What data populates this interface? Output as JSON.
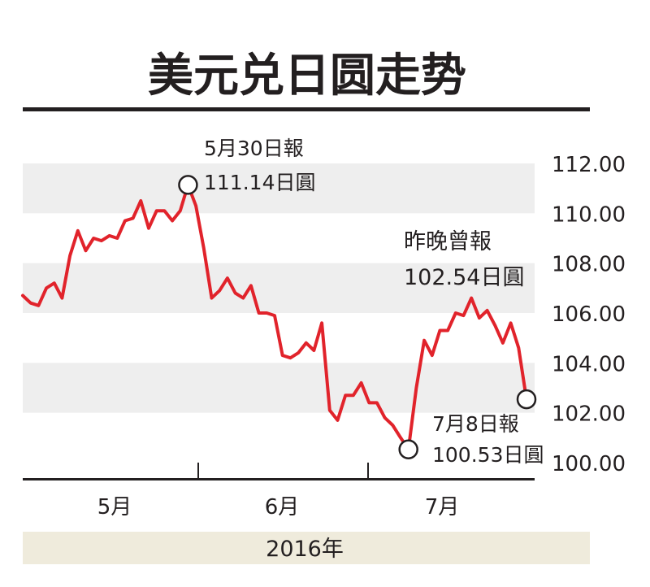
{
  "chart_data": {
    "type": "line",
    "title": "美元兑日圆走势",
    "xlabel": "2016年",
    "ylim": [
      100,
      112
    ],
    "y_ticks": [
      "112.00",
      "110.00",
      "108.00",
      "106.00",
      "104.00",
      "102.00",
      "100.00"
    ],
    "x_ticks": [
      "5月",
      "6月",
      "7月"
    ],
    "grid": "alternating horizontal bands",
    "colors": {
      "line": "#e1232b",
      "band": "#eeeeee",
      "footer": "#efebdc"
    },
    "series": [
      {
        "values": [
          106.7,
          106.4,
          106.3,
          107.0,
          107.2,
          106.6,
          108.3,
          109.3,
          108.5,
          109.0,
          108.9,
          109.1,
          109.0,
          109.7,
          109.8,
          110.5,
          109.4,
          110.1,
          110.1,
          109.7,
          110.1,
          111.14,
          110.3,
          108.6,
          106.6,
          106.9,
          107.4,
          106.8,
          106.6,
          107.1,
          106.0,
          106.0,
          105.9,
          104.3,
          104.2,
          104.4,
          104.8,
          104.5,
          105.6,
          102.1,
          101.7,
          102.7,
          102.7,
          103.2,
          102.4,
          102.4,
          101.8,
          101.5,
          101.0,
          100.53,
          103.0,
          104.9,
          104.3,
          105.3,
          105.3,
          106.0,
          105.9,
          106.6,
          105.8,
          106.1,
          105.5,
          104.8,
          105.6,
          104.6,
          102.54
        ]
      }
    ],
    "annotations": [
      {
        "label_line1": "5月30日報",
        "label_line2": "111.14日圓",
        "value": 111.14
      },
      {
        "label_line1": "7月8日報",
        "label_line2": "100.53日圓",
        "value": 100.53
      },
      {
        "label_line1": "昨晚曾報",
        "label_line2": "102.54日圓",
        "value": 102.54
      }
    ]
  }
}
